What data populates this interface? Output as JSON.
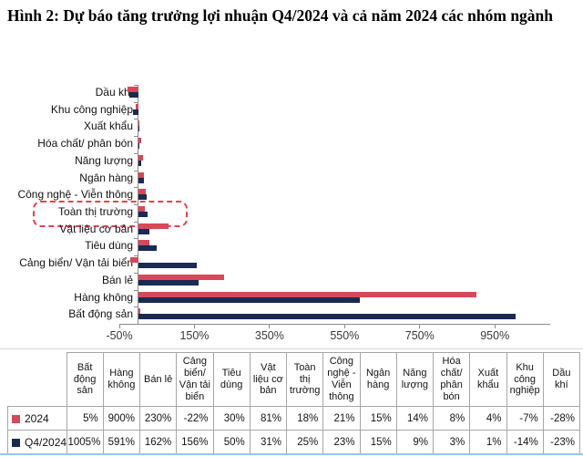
{
  "figure": {
    "title": "Hình 2: Dự báo tăng trưởng lợi nhuận Q4/2024 và cả năm 2024 các nhóm ngành"
  },
  "colors": {
    "series_2024": "#d5495a",
    "series_q4_2024": "#1a2a52",
    "axis": "#8c8c8c",
    "highlight_box": "#e8414f",
    "table_border": "#a6a6a6",
    "bottom_rule": "#9dc3e6"
  },
  "chart_data": {
    "type": "bar",
    "orientation": "horizontal",
    "title": "Hình 2: Dự báo tăng trưởng lợi nhuận Q4/2024 và cả năm 2024 các nhóm ngành",
    "xlabel": "",
    "ylabel": "",
    "xlim": [
      -50,
      1095
    ],
    "x_tick_values": [
      -50,
      150,
      350,
      550,
      750,
      950
    ],
    "x_tick_labels": [
      "-50%",
      "150%",
      "350%",
      "550%",
      "750%",
      "950%"
    ],
    "grid": false,
    "legend_position": "table-below",
    "highlighted_category": "Toàn thị trường",
    "categories": [
      "Dầu khí",
      "Khu công nghiệp",
      "Xuất khẩu",
      "Hóa chất/ phân bón",
      "Năng lượng",
      "Ngân hàng",
      "Công nghệ - Viễn thông",
      "Toàn thị trường",
      "Vật liệu cơ bản",
      "Tiêu dùng",
      "Cảng biển/ Vận tải biển",
      "Bán lẻ",
      "Hàng không",
      "Bất động sản"
    ],
    "series": [
      {
        "name": "2024",
        "color": "#d5495a",
        "unit": "%",
        "values": [
          -28,
          -7,
          4,
          8,
          14,
          15,
          21,
          18,
          81,
          30,
          -22,
          230,
          900,
          5
        ]
      },
      {
        "name": "Q4/2024",
        "color": "#1a2a52",
        "unit": "%",
        "values": [
          -23,
          -14,
          1,
          3,
          9,
          15,
          23,
          25,
          31,
          50,
          156,
          162,
          591,
          1005
        ]
      }
    ]
  },
  "table": {
    "columns": [
      "Bất động sản",
      "Hàng không",
      "Bán lẻ",
      "Cảng biển/ Vận tải biển",
      "Tiêu dùng",
      "Vật liệu cơ bản",
      "Toàn thị trường",
      "Công nghệ - Viễn thông",
      "Ngân hàng",
      "Năng lượng",
      "Hóa chất/ phân bón",
      "Xuất khẩu",
      "Khu công nghiệp",
      "Dầu khí"
    ],
    "rows": [
      {
        "label": "2024",
        "marker_color": "#d5495a",
        "values": [
          "5%",
          "900%",
          "230%",
          "-22%",
          "30%",
          "81%",
          "18%",
          "21%",
          "15%",
          "14%",
          "8%",
          "4%",
          "-7%",
          "-28%"
        ]
      },
      {
        "label": "Q4/2024",
        "marker_color": "#1a2a52",
        "values": [
          "1005%",
          "591%",
          "162%",
          "156%",
          "50%",
          "31%",
          "25%",
          "23%",
          "15%",
          "9%",
          "3%",
          "1%",
          "-14%",
          "-23%"
        ]
      }
    ]
  }
}
